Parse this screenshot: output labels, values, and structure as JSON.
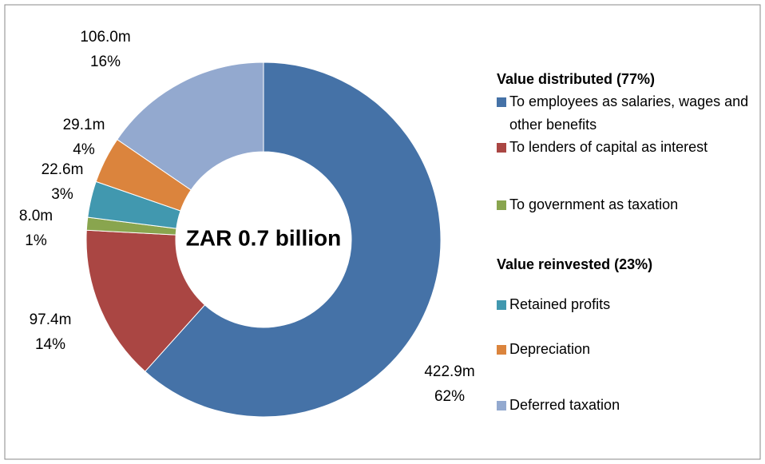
{
  "chart_data": {
    "type": "donut",
    "center_label": "ZAR 0.7 billion",
    "legend_titles": [
      "Value distributed (77%)",
      "Value reinvested (23%)"
    ],
    "categories": [
      "To employees as salaries, wages and other benefits",
      "To lenders of capital as interest",
      "To government as taxation",
      "Retained profits",
      "Depreciation",
      "Deferred taxation"
    ],
    "colors": [
      "#4572a7",
      "#aa4643",
      "#89a54e",
      "#4198af",
      "#db843d",
      "#93a9cf"
    ],
    "values": [
      422.9,
      97.4,
      8.0,
      22.6,
      29.1,
      106.0
    ],
    "value_labels": [
      "422.9m",
      "97.4m",
      "8.0m",
      "22.6m",
      "29.1m",
      "106.0m"
    ],
    "percents": [
      62,
      14,
      1,
      3,
      4,
      16
    ],
    "percent_labels": [
      "62%",
      "14%",
      "1%",
      "3%",
      "4%",
      "16%"
    ]
  }
}
